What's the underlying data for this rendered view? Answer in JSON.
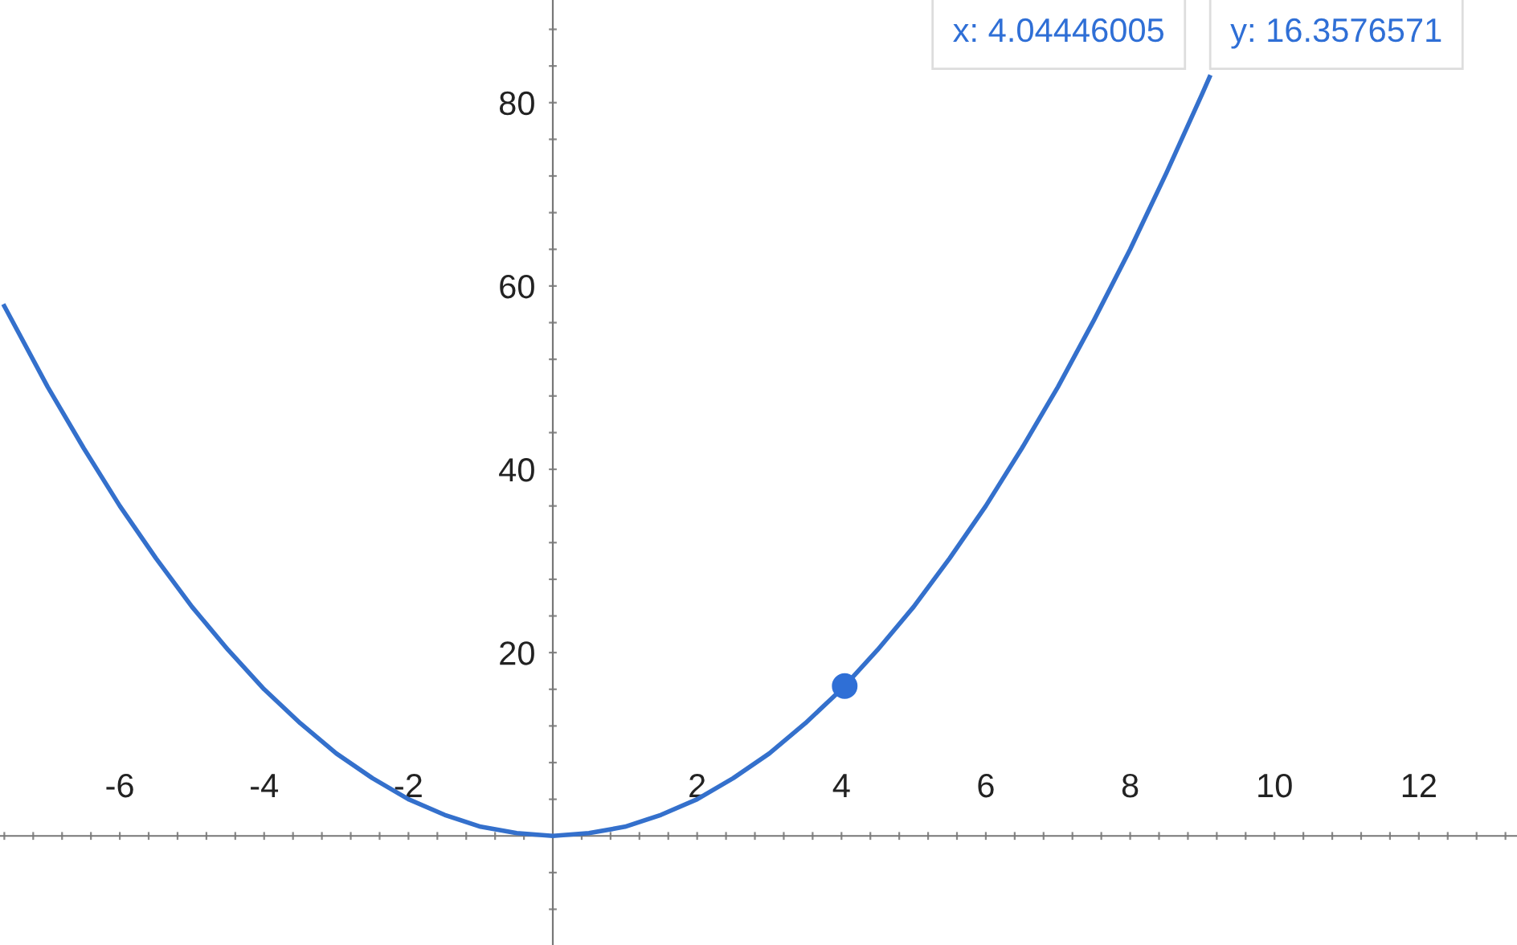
{
  "chart_data": {
    "type": "line",
    "xlim": [
      -7.66,
      13.36
    ],
    "ylim": [
      -11.9,
      91.2
    ],
    "xticks": [
      {
        "value": -7.6,
        "label": null
      },
      {
        "value": -7.2,
        "label": null
      },
      {
        "value": -6.8,
        "label": null
      },
      {
        "value": -6.4,
        "label": null
      },
      -6,
      {
        "value": -5.6,
        "label": null
      },
      {
        "value": -5.2,
        "label": null
      },
      {
        "value": -4.8,
        "label": null
      },
      {
        "value": -4.4,
        "label": null
      },
      -4,
      {
        "value": -3.6,
        "label": null
      },
      {
        "value": -3.2,
        "label": null
      },
      {
        "value": -2.8,
        "label": null
      },
      {
        "value": -2.4,
        "label": null
      },
      -2,
      {
        "value": -1.6,
        "label": null
      },
      {
        "value": -1.2,
        "label": null
      },
      {
        "value": -0.8,
        "label": null
      },
      {
        "value": -0.4,
        "label": null
      },
      {
        "value": 0.4,
        "label": null
      },
      {
        "value": 0.8,
        "label": null
      },
      {
        "value": 1.2,
        "label": null
      },
      {
        "value": 1.6,
        "label": null
      },
      2,
      {
        "value": 2.4,
        "label": null
      },
      {
        "value": 2.8,
        "label": null
      },
      {
        "value": 3.2,
        "label": null
      },
      {
        "value": 3.6,
        "label": null
      },
      4,
      {
        "value": 4.4,
        "label": null
      },
      {
        "value": 4.8,
        "label": null
      },
      {
        "value": 5.2,
        "label": null
      },
      {
        "value": 5.6,
        "label": null
      },
      6,
      {
        "value": 6.4,
        "label": null
      },
      {
        "value": 6.8,
        "label": null
      },
      {
        "value": 7.2,
        "label": null
      },
      {
        "value": 7.6,
        "label": null
      },
      8,
      {
        "value": 8.4,
        "label": null
      },
      {
        "value": 8.8,
        "label": null
      },
      {
        "value": 9.2,
        "label": null
      },
      {
        "value": 9.6,
        "label": null
      },
      10,
      {
        "value": 10.4,
        "label": null
      },
      {
        "value": 10.8,
        "label": null
      },
      {
        "value": 11.2,
        "label": null
      },
      {
        "value": 11.6,
        "label": null
      },
      12,
      {
        "value": 12.4,
        "label": null
      },
      {
        "value": 12.8,
        "label": null
      },
      {
        "value": 13.2,
        "label": null
      }
    ],
    "yticks": [
      {
        "value": -8,
        "label": null
      },
      {
        "value": -4,
        "label": null
      },
      {
        "value": 4,
        "label": null
      },
      {
        "value": 8,
        "label": null
      },
      {
        "value": 12,
        "label": null
      },
      {
        "value": 16,
        "label": null
      },
      20,
      {
        "value": 24,
        "label": null
      },
      {
        "value": 28,
        "label": null
      },
      {
        "value": 32,
        "label": null
      },
      {
        "value": 36,
        "label": null
      },
      40,
      {
        "value": 44,
        "label": null
      },
      {
        "value": 48,
        "label": null
      },
      {
        "value": 52,
        "label": null
      },
      {
        "value": 56,
        "label": null
      },
      60,
      {
        "value": 64,
        "label": null
      },
      {
        "value": 68,
        "label": null
      },
      {
        "value": 72,
        "label": null
      },
      {
        "value": 76,
        "label": null
      },
      80,
      {
        "value": 84,
        "label": null
      },
      {
        "value": 88,
        "label": null
      }
    ],
    "grid": false,
    "legend": false,
    "series": [
      {
        "color": "#3470cc",
        "marker": "none",
        "x": [
          -7.6,
          -7,
          -6.5,
          -6,
          -5.5,
          -5,
          -4.5,
          -4,
          -3.5,
          -3,
          -2.5,
          -2,
          -1.5,
          -1,
          -0.5,
          0,
          0.5,
          1,
          1.5,
          2,
          2.5,
          3,
          3.5,
          4,
          4.5,
          5,
          5.5,
          6,
          6.5,
          7,
          7.5,
          8,
          8.5,
          9,
          9.1
        ],
        "values": [
          57.8,
          49,
          42.3,
          36,
          30.3,
          25,
          20.3,
          16,
          12.3,
          9,
          6.3,
          4,
          2.3,
          1,
          0.3,
          0,
          0.3,
          1,
          2.3,
          4,
          6.3,
          9,
          12.3,
          16,
          20.3,
          25,
          30.3,
          36,
          42.3,
          49,
          56.3,
          64,
          72.3,
          81,
          82.8
        ]
      },
      {
        "type": "scatter",
        "color": "#2f6fd6",
        "marker": "circle",
        "x": [
          4.04446005
        ],
        "values": [
          16.3576571
        ]
      }
    ],
    "annotations": [
      "x: 4.04446005",
      "y: 16.3576571"
    ]
  }
}
